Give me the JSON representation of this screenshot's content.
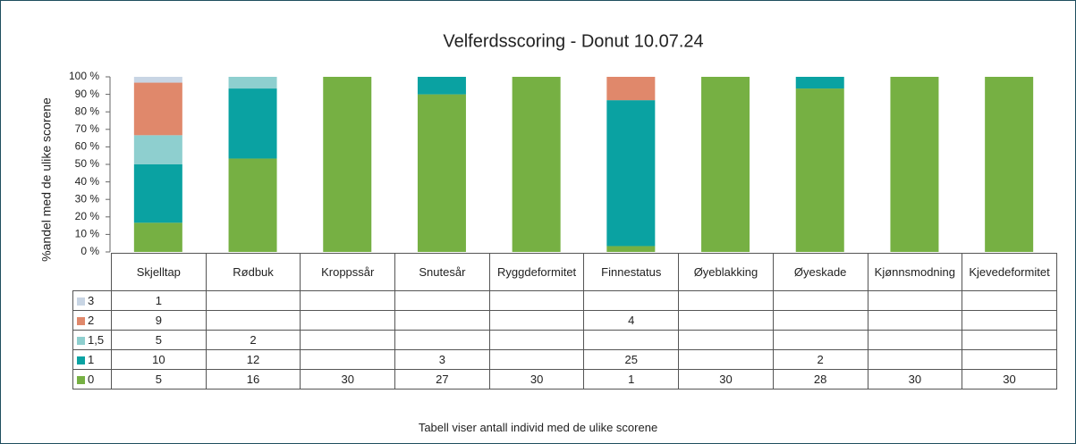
{
  "chart_data": {
    "type": "bar",
    "stacking": "percent",
    "title": "Velferdsscoring - Donut 10.07.24",
    "y_label": "%andel med de ulike scorene",
    "footer": "Tabell viser antall individ med de ulike scorene",
    "categories": [
      "Skjelltap",
      "Rødbuk",
      "Kroppssår",
      "Snutesår",
      "Ryggdeformitet",
      "Finnestatus",
      "Øyeblakking",
      "Øyeskade",
      "Kjønnsmodning",
      "Kjevedeformitet"
    ],
    "series": [
      {
        "name": "3",
        "color": "#c8d5e4",
        "values": [
          1,
          null,
          null,
          null,
          null,
          null,
          null,
          null,
          null,
          null
        ]
      },
      {
        "name": "2",
        "color": "#e0886b",
        "values": [
          9,
          null,
          null,
          null,
          null,
          4,
          null,
          null,
          null,
          null
        ]
      },
      {
        "name": "1,5",
        "color": "#8ecfcf",
        "values": [
          5,
          2,
          null,
          null,
          null,
          null,
          null,
          null,
          null,
          null
        ]
      },
      {
        "name": "1",
        "color": "#0aa2a2",
        "values": [
          10,
          12,
          null,
          3,
          null,
          25,
          null,
          2,
          null,
          null
        ]
      },
      {
        "name": "0",
        "color": "#76b043",
        "values": [
          5,
          16,
          30,
          27,
          30,
          1,
          30,
          28,
          30,
          30
        ]
      }
    ],
    "ylim": [
      0,
      100
    ],
    "yticks": [
      {
        "value": 0,
        "label": "0 %"
      },
      {
        "value": 10,
        "label": "10 %"
      },
      {
        "value": 20,
        "label": "20 %"
      },
      {
        "value": 30,
        "label": "30 %"
      },
      {
        "value": 40,
        "label": "40 %"
      },
      {
        "value": 50,
        "label": "50 %"
      },
      {
        "value": 60,
        "label": "60 %"
      },
      {
        "value": 70,
        "label": "70 %"
      },
      {
        "value": 80,
        "label": "80 %"
      },
      {
        "value": 90,
        "label": "90 %"
      },
      {
        "value": 100,
        "label": "100 %"
      }
    ],
    "grid": false
  }
}
